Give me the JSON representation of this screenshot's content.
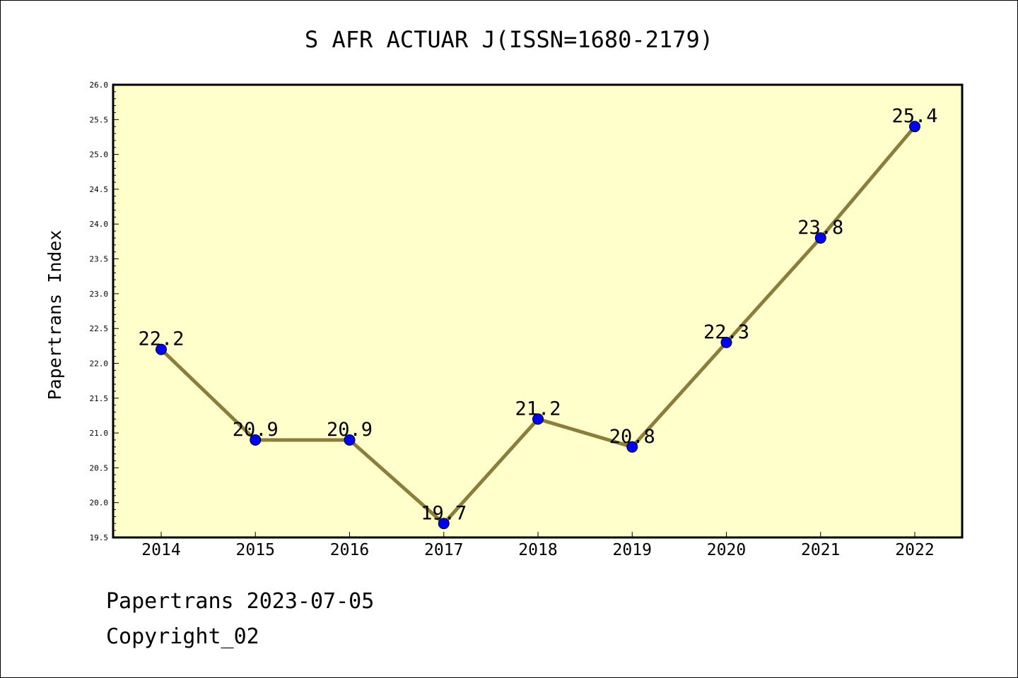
{
  "chart_data": {
    "type": "line",
    "title": "S AFR ACTUAR J(ISSN=1680-2179)",
    "xlabel": "",
    "ylabel": "Papertrans Index",
    "categories": [
      "2014",
      "2015",
      "2016",
      "2017",
      "2018",
      "2019",
      "2020",
      "2021",
      "2022"
    ],
    "series": [
      {
        "values": [
          22.2,
          20.9,
          20.9,
          19.7,
          21.2,
          20.8,
          22.3,
          23.8,
          25.4
        ],
        "data_labels": [
          "22.2",
          "20.9",
          "20.9",
          "19.7",
          "21.2",
          "20.8",
          "22.3",
          "23.8",
          "25.4"
        ]
      }
    ],
    "ylim": [
      19.5,
      26.0
    ],
    "yticks": [
      "19.5",
      "20.0",
      "20.5",
      "21.0",
      "21.5",
      "22.0",
      "22.5",
      "23.0",
      "23.5",
      "24.0",
      "24.5",
      "25.0",
      "25.5",
      "26.0"
    ],
    "grid": false,
    "colors": {
      "plot_background": "#ffffcc",
      "line": "#8b7d3a",
      "marker": "#0000ff"
    }
  },
  "footer": {
    "line1": "Papertrans 2023-07-05",
    "line2": "Copyright_02"
  }
}
